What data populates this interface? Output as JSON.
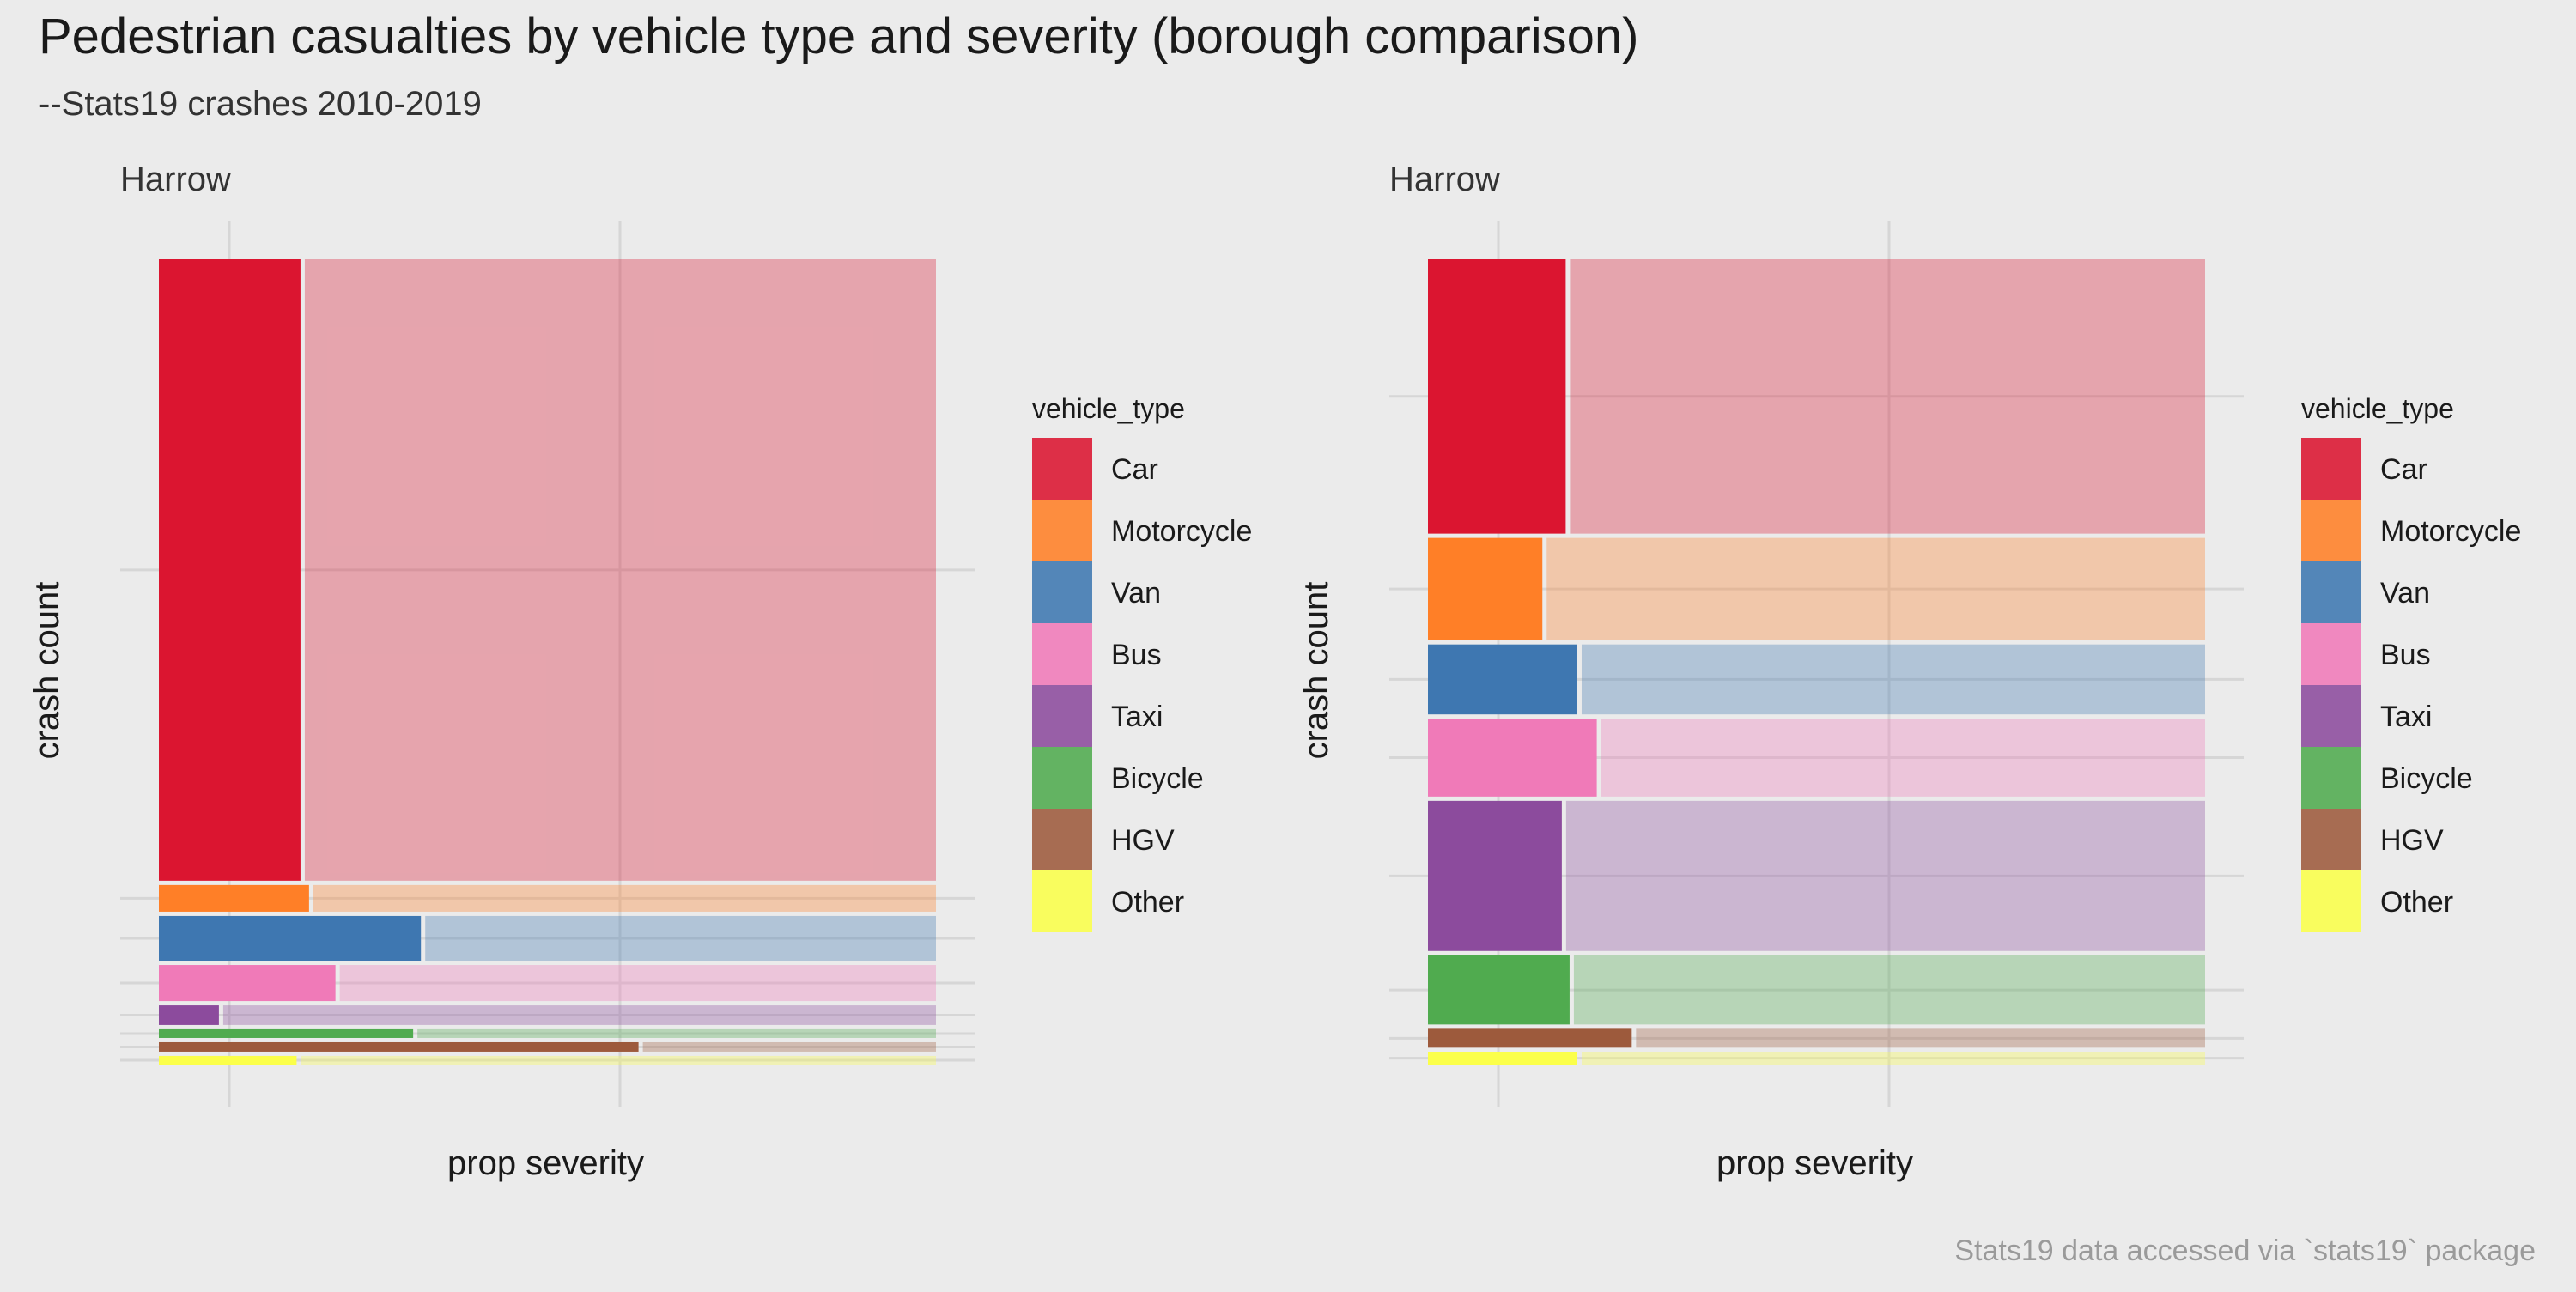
{
  "title": "Pedestrian casualties by vehicle type and severity (borough comparison)",
  "subtitle": "--Stats19 crashes 2010-2019",
  "caption": "Stats19 data accessed via `stats19` package",
  "colors": {
    "background": "#ebebeb",
    "grid": "#d6d6d6",
    "divider": "#f7f7f7"
  },
  "chart_data": [
    {
      "type": "mosaic",
      "panel_title": "Harrow",
      "xlabel": "prop severity",
      "ylabel": "crash count",
      "legend_title": "vehicle_type",
      "legend_position": "right",
      "grid": true,
      "categories": [
        "Car",
        "Motorcycle",
        "Van",
        "Bus",
        "Taxi",
        "Bicycle",
        "HGV",
        "Other"
      ],
      "colors": [
        "#db1530",
        "#ff7f27",
        "#3e77b1",
        "#f07ab8",
        "#8c4b9d",
        "#50ab4f",
        "#9d5a3c",
        "#fbff4a"
      ],
      "row_share": [
        0.792,
        0.034,
        0.057,
        0.046,
        0.025,
        0.011,
        0.012,
        0.011
      ],
      "ksi_share": [
        0.185,
        0.196,
        0.34,
        0.23,
        0.08,
        0.33,
        0.62,
        0.18
      ]
    },
    {
      "type": "mosaic",
      "panel_title": "Harrow",
      "xlabel": "prop severity",
      "ylabel": "crash count",
      "legend_title": "vehicle_type",
      "legend_position": "right",
      "grid": true,
      "categories": [
        "Car",
        "Motorcycle",
        "Van",
        "Bus",
        "Taxi",
        "Bicycle",
        "HGV",
        "Other"
      ],
      "colors": [
        "#db1530",
        "#ff7f27",
        "#3e77b1",
        "#f07ab8",
        "#8c4b9d",
        "#50ab4f",
        "#9d5a3c",
        "#fbff4a"
      ],
      "row_share": [
        0.349,
        0.13,
        0.089,
        0.099,
        0.191,
        0.088,
        0.024,
        0.016
      ],
      "ksi_share": [
        0.18,
        0.15,
        0.195,
        0.22,
        0.175,
        0.185,
        0.265,
        0.195
      ]
    }
  ]
}
